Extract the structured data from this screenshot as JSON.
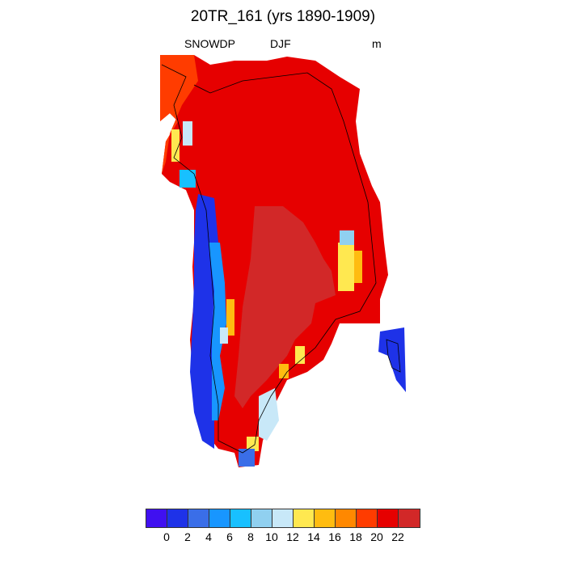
{
  "title": "20TR_161 (yrs 1890-1909)",
  "left_label": "SNOWDP",
  "center_label": "DJF",
  "units": "m",
  "colorbar": {
    "colors": [
      "#4010f0",
      "#1e32e8",
      "#3a6ee8",
      "#1896ff",
      "#18c0ff",
      "#90d0f0",
      "#c8e8f8",
      "#ffe850",
      "#ffbc10",
      "#ff8800",
      "#ff3c00",
      "#e60000",
      "#d22828"
    ],
    "ticks": [
      "0",
      "2",
      "4",
      "6",
      "8",
      "10",
      "12",
      "14",
      "16",
      "18",
      "20",
      "22"
    ]
  }
}
